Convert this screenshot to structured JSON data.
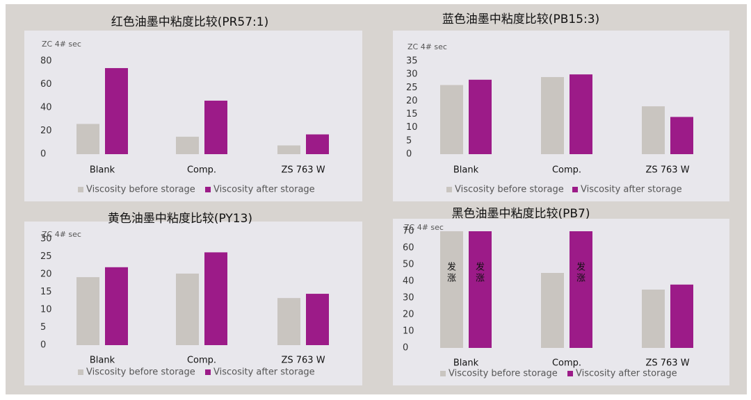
{
  "colors": {
    "before": "#c9c5c0",
    "after": "#9c1b88",
    "panel": "#e8e7ec",
    "background": "#d8d4d0"
  },
  "chart_data": [
    {
      "type": "bar",
      "title": "红色油墨中粘度比较(PR57:1)",
      "unit_label": "ZC 4# sec",
      "categories": [
        "Blank",
        "Comp.",
        "ZS 763 W"
      ],
      "series": [
        {
          "name": "Viscosity before storage",
          "values": [
            26,
            15,
            7.5
          ]
        },
        {
          "name": "Viscosity after storage",
          "values": [
            74,
            46,
            17
          ]
        }
      ],
      "ylim": [
        0,
        80
      ],
      "yticks": [
        0,
        20,
        40,
        60,
        80
      ],
      "legend_position": "bottom",
      "grid": false,
      "annotations": []
    },
    {
      "type": "bar",
      "title": "蓝色油墨中粘度比较(PB15:3)",
      "unit_label": "ZC 4# sec",
      "categories": [
        "Blank",
        "Comp.",
        "ZS 763 W"
      ],
      "series": [
        {
          "name": "Viscosity before storage",
          "values": [
            26,
            29,
            18
          ]
        },
        {
          "name": "Viscosity after storage",
          "values": [
            28,
            30,
            14
          ]
        }
      ],
      "ylim": [
        0,
        35
      ],
      "yticks": [
        0,
        5,
        10,
        15,
        20,
        25,
        30,
        35
      ],
      "legend_position": "bottom",
      "grid": false,
      "annotations": []
    },
    {
      "type": "bar",
      "title": "黄色油墨中粘度比较(PY13)",
      "unit_label": "ZC 4# sec",
      "categories": [
        "Blank",
        "Comp.",
        "ZS 763 W"
      ],
      "series": [
        {
          "name": "Viscosity before storage",
          "values": [
            19.2,
            20.2,
            13.3
          ]
        },
        {
          "name": "Viscosity after storage",
          "values": [
            22,
            26.2,
            14.5
          ]
        }
      ],
      "ylim": [
        0,
        30
      ],
      "yticks": [
        0,
        5,
        10,
        15,
        20,
        25,
        30
      ],
      "legend_position": "bottom",
      "grid": false,
      "annotations": []
    },
    {
      "type": "bar",
      "title": "黑色油墨中粘度比较(PB7)",
      "unit_label": "ZC 4# sec",
      "categories": [
        "Blank",
        "Comp.",
        "ZS 763 W"
      ],
      "series": [
        {
          "name": "Viscosity before storage",
          "values": [
            70,
            45,
            35
          ]
        },
        {
          "name": "Viscosity after storage",
          "values": [
            70,
            70,
            38
          ]
        }
      ],
      "ylim": [
        0,
        70
      ],
      "yticks": [
        0,
        10,
        20,
        30,
        40,
        50,
        60,
        70
      ],
      "legend_position": "bottom",
      "grid": false,
      "annotations": [
        {
          "category": 0,
          "series": 0,
          "text": "发涨"
        },
        {
          "category": 0,
          "series": 1,
          "text": "发涨"
        },
        {
          "category": 1,
          "series": 1,
          "text": "发涨"
        }
      ]
    }
  ]
}
